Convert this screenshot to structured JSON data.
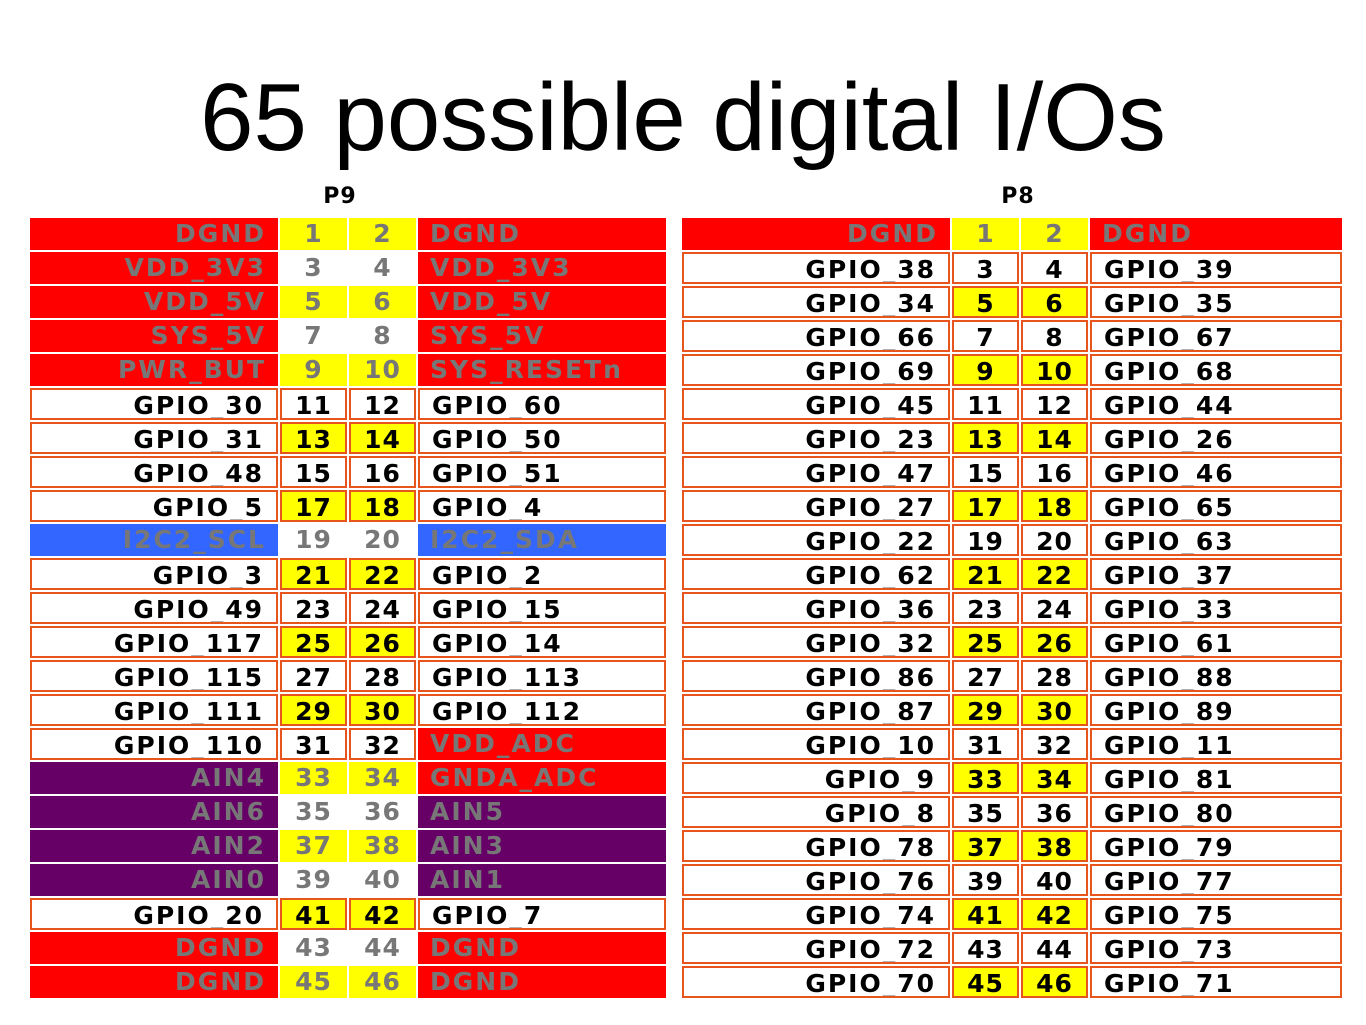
{
  "title": "65 possible digital I/Os",
  "colors": {
    "red": "#ff0000",
    "purple": "#660066",
    "blue": "#3366ff",
    "yellow": "#ffff00",
    "white": "#ffffff",
    "row_border": "#e8541e",
    "gray_text": "#777777",
    "dark_text": "#000000"
  },
  "headers": [
    {
      "label": "P9",
      "rows": [
        {
          "left": "DGND",
          "pin_a": "1",
          "pin_b": "2",
          "right": "DGND",
          "left_style": "red",
          "right_style": "red",
          "pins_yellow": true
        },
        {
          "left": "VDD_3V3",
          "pin_a": "3",
          "pin_b": "4",
          "right": "VDD_3V3",
          "left_style": "red",
          "right_style": "red",
          "pins_yellow": false
        },
        {
          "left": "VDD_5V",
          "pin_a": "5",
          "pin_b": "6",
          "right": "VDD_5V",
          "left_style": "red",
          "right_style": "red",
          "pins_yellow": true
        },
        {
          "left": "SYS_5V",
          "pin_a": "7",
          "pin_b": "8",
          "right": "SYS_5V",
          "left_style": "red",
          "right_style": "red",
          "pins_yellow": false
        },
        {
          "left": "PWR_BUT",
          "pin_a": "9",
          "pin_b": "10",
          "right": "SYS_RESETn",
          "left_style": "red",
          "right_style": "red",
          "pins_yellow": true
        },
        {
          "left": "GPIO_30",
          "pin_a": "11",
          "pin_b": "12",
          "right": "GPIO_60",
          "left_style": "gpio",
          "right_style": "gpio",
          "pins_yellow": false
        },
        {
          "left": "GPIO_31",
          "pin_a": "13",
          "pin_b": "14",
          "right": "GPIO_50",
          "left_style": "gpio",
          "right_style": "gpio",
          "pins_yellow": true
        },
        {
          "left": "GPIO_48",
          "pin_a": "15",
          "pin_b": "16",
          "right": "GPIO_51",
          "left_style": "gpio",
          "right_style": "gpio",
          "pins_yellow": false
        },
        {
          "left": "GPIO_5",
          "pin_a": "17",
          "pin_b": "18",
          "right": "GPIO_4",
          "left_style": "gpio",
          "right_style": "gpio",
          "pins_yellow": true
        },
        {
          "left": "I2C2_SCL",
          "pin_a": "19",
          "pin_b": "20",
          "right": "I2C2_SDA",
          "left_style": "blue",
          "right_style": "blue",
          "pins_yellow": false
        },
        {
          "left": "GPIO_3",
          "pin_a": "21",
          "pin_b": "22",
          "right": "GPIO_2",
          "left_style": "gpio",
          "right_style": "gpio",
          "pins_yellow": true
        },
        {
          "left": "GPIO_49",
          "pin_a": "23",
          "pin_b": "24",
          "right": "GPIO_15",
          "left_style": "gpio",
          "right_style": "gpio",
          "pins_yellow": false
        },
        {
          "left": "GPIO_117",
          "pin_a": "25",
          "pin_b": "26",
          "right": "GPIO_14",
          "left_style": "gpio",
          "right_style": "gpio",
          "pins_yellow": true
        },
        {
          "left": "GPIO_115",
          "pin_a": "27",
          "pin_b": "28",
          "right": "GPIO_113",
          "left_style": "gpio",
          "right_style": "gpio",
          "pins_yellow": false
        },
        {
          "left": "GPIO_111",
          "pin_a": "29",
          "pin_b": "30",
          "right": "GPIO_112",
          "left_style": "gpio",
          "right_style": "gpio",
          "pins_yellow": true
        },
        {
          "left": "GPIO_110",
          "pin_a": "31",
          "pin_b": "32",
          "right": "VDD_ADC",
          "left_style": "gpio",
          "right_style": "red",
          "pins_yellow": false
        },
        {
          "left": "AIN4",
          "pin_a": "33",
          "pin_b": "34",
          "right": "GNDA_ADC",
          "left_style": "purple",
          "right_style": "red",
          "pins_yellow": true
        },
        {
          "left": "AIN6",
          "pin_a": "35",
          "pin_b": "36",
          "right": "AIN5",
          "left_style": "purple",
          "right_style": "purple",
          "pins_yellow": false
        },
        {
          "left": "AIN2",
          "pin_a": "37",
          "pin_b": "38",
          "right": "AIN3",
          "left_style": "purple",
          "right_style": "purple",
          "pins_yellow": true
        },
        {
          "left": "AIN0",
          "pin_a": "39",
          "pin_b": "40",
          "right": "AIN1",
          "left_style": "purple",
          "right_style": "purple",
          "pins_yellow": false
        },
        {
          "left": "GPIO_20",
          "pin_a": "41",
          "pin_b": "42",
          "right": "GPIO_7",
          "left_style": "gpio",
          "right_style": "gpio",
          "pins_yellow": true
        },
        {
          "left": "DGND",
          "pin_a": "43",
          "pin_b": "44",
          "right": "DGND",
          "left_style": "red",
          "right_style": "red",
          "pins_yellow": false
        },
        {
          "left": "DGND",
          "pin_a": "45",
          "pin_b": "46",
          "right": "DGND",
          "left_style": "red",
          "right_style": "red",
          "pins_yellow": true
        }
      ]
    },
    {
      "label": "P8",
      "rows": [
        {
          "left": "DGND",
          "pin_a": "1",
          "pin_b": "2",
          "right": "DGND",
          "left_style": "red",
          "right_style": "red",
          "pins_yellow": true
        },
        {
          "left": "GPIO_38",
          "pin_a": "3",
          "pin_b": "4",
          "right": "GPIO_39",
          "left_style": "gpio",
          "right_style": "gpio",
          "pins_yellow": false
        },
        {
          "left": "GPIO_34",
          "pin_a": "5",
          "pin_b": "6",
          "right": "GPIO_35",
          "left_style": "gpio",
          "right_style": "gpio",
          "pins_yellow": true
        },
        {
          "left": "GPIO_66",
          "pin_a": "7",
          "pin_b": "8",
          "right": "GPIO_67",
          "left_style": "gpio",
          "right_style": "gpio",
          "pins_yellow": false
        },
        {
          "left": "GPIO_69",
          "pin_a": "9",
          "pin_b": "10",
          "right": "GPIO_68",
          "left_style": "gpio",
          "right_style": "gpio",
          "pins_yellow": true
        },
        {
          "left": "GPIO_45",
          "pin_a": "11",
          "pin_b": "12",
          "right": "GPIO_44",
          "left_style": "gpio",
          "right_style": "gpio",
          "pins_yellow": false
        },
        {
          "left": "GPIO_23",
          "pin_a": "13",
          "pin_b": "14",
          "right": "GPIO_26",
          "left_style": "gpio",
          "right_style": "gpio",
          "pins_yellow": true
        },
        {
          "left": "GPIO_47",
          "pin_a": "15",
          "pin_b": "16",
          "right": "GPIO_46",
          "left_style": "gpio",
          "right_style": "gpio",
          "pins_yellow": false
        },
        {
          "left": "GPIO_27",
          "pin_a": "17",
          "pin_b": "18",
          "right": "GPIO_65",
          "left_style": "gpio",
          "right_style": "gpio",
          "pins_yellow": true
        },
        {
          "left": "GPIO_22",
          "pin_a": "19",
          "pin_b": "20",
          "right": "GPIO_63",
          "left_style": "gpio",
          "right_style": "gpio",
          "pins_yellow": false
        },
        {
          "left": "GPIO_62",
          "pin_a": "21",
          "pin_b": "22",
          "right": "GPIO_37",
          "left_style": "gpio",
          "right_style": "gpio",
          "pins_yellow": true
        },
        {
          "left": "GPIO_36",
          "pin_a": "23",
          "pin_b": "24",
          "right": "GPIO_33",
          "left_style": "gpio",
          "right_style": "gpio",
          "pins_yellow": false
        },
        {
          "left": "GPIO_32",
          "pin_a": "25",
          "pin_b": "26",
          "right": "GPIO_61",
          "left_style": "gpio",
          "right_style": "gpio",
          "pins_yellow": true
        },
        {
          "left": "GPIO_86",
          "pin_a": "27",
          "pin_b": "28",
          "right": "GPIO_88",
          "left_style": "gpio",
          "right_style": "gpio",
          "pins_yellow": false
        },
        {
          "left": "GPIO_87",
          "pin_a": "29",
          "pin_b": "30",
          "right": "GPIO_89",
          "left_style": "gpio",
          "right_style": "gpio",
          "pins_yellow": true
        },
        {
          "left": "GPIO_10",
          "pin_a": "31",
          "pin_b": "32",
          "right": "GPIO_11",
          "left_style": "gpio",
          "right_style": "gpio",
          "pins_yellow": false
        },
        {
          "left": "GPIO_9",
          "pin_a": "33",
          "pin_b": "34",
          "right": "GPIO_81",
          "left_style": "gpio",
          "right_style": "gpio",
          "pins_yellow": true
        },
        {
          "left": "GPIO_8",
          "pin_a": "35",
          "pin_b": "36",
          "right": "GPIO_80",
          "left_style": "gpio",
          "right_style": "gpio",
          "pins_yellow": false
        },
        {
          "left": "GPIO_78",
          "pin_a": "37",
          "pin_b": "38",
          "right": "GPIO_79",
          "left_style": "gpio",
          "right_style": "gpio",
          "pins_yellow": true
        },
        {
          "left": "GPIO_76",
          "pin_a": "39",
          "pin_b": "40",
          "right": "GPIO_77",
          "left_style": "gpio",
          "right_style": "gpio",
          "pins_yellow": false
        },
        {
          "left": "GPIO_74",
          "pin_a": "41",
          "pin_b": "42",
          "right": "GPIO_75",
          "left_style": "gpio",
          "right_style": "gpio",
          "pins_yellow": true
        },
        {
          "left": "GPIO_72",
          "pin_a": "43",
          "pin_b": "44",
          "right": "GPIO_73",
          "left_style": "gpio",
          "right_style": "gpio",
          "pins_yellow": false
        },
        {
          "left": "GPIO_70",
          "pin_a": "45",
          "pin_b": "46",
          "right": "GPIO_71",
          "left_style": "gpio",
          "right_style": "gpio",
          "pins_yellow": true
        }
      ]
    }
  ]
}
